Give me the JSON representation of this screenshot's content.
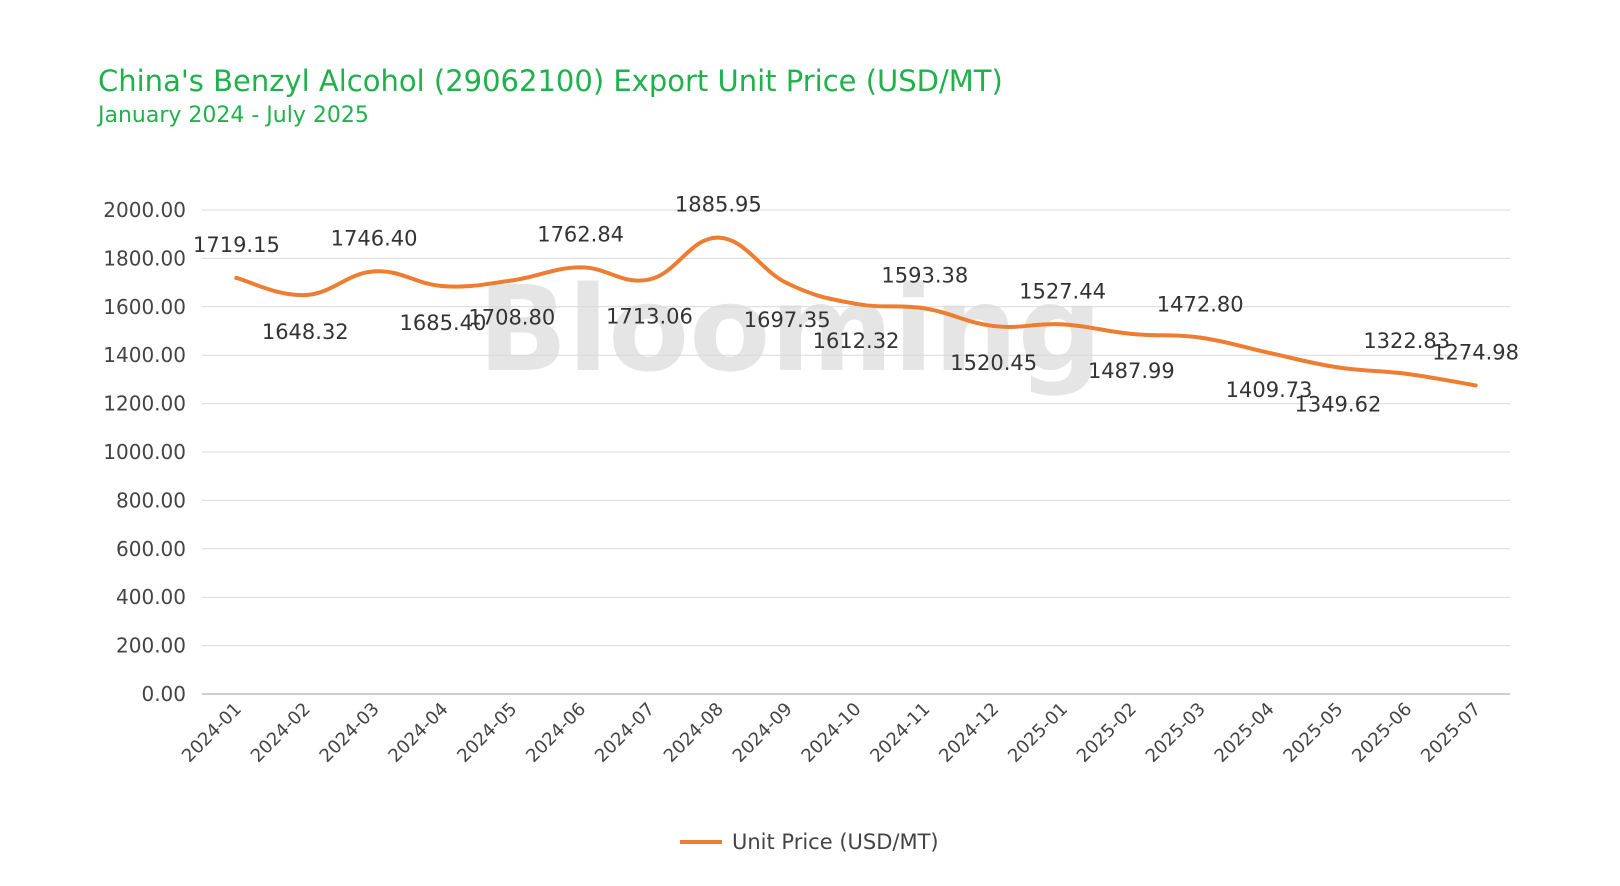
{
  "chart_data": {
    "type": "line",
    "title": "China's Benzyl Alcohol (29062100) Export Unit Price (USD/MT)",
    "subtitle": "January 2024 - July 2025",
    "watermark": "Blooming",
    "categories": [
      "2024-01",
      "2024-02",
      "2024-03",
      "2024-04",
      "2024-05",
      "2024-06",
      "2024-07",
      "2024-08",
      "2024-09",
      "2024-10",
      "2024-11",
      "2024-12",
      "2025-01",
      "2025-02",
      "2025-03",
      "2025-04",
      "2025-05",
      "2025-06",
      "2025-07"
    ],
    "series": [
      {
        "name": "Unit Price (USD/MT)",
        "color": "#ed7d31",
        "values": [
          1719.15,
          1648.32,
          1746.4,
          1685.4,
          1708.8,
          1762.84,
          1713.06,
          1885.95,
          1697.35,
          1612.32,
          1593.38,
          1520.45,
          1527.44,
          1487.99,
          1472.8,
          1409.73,
          1349.62,
          1322.83,
          1274.98
        ],
        "labels": [
          "1719.15",
          "1648.32",
          "1746.40",
          "1685.40",
          "1708.80",
          "1762.84",
          "1713.06",
          "1885.95",
          "1697.35",
          "1612.32",
          "1593.38",
          "1520.45",
          "1527.44",
          "1487.99",
          "1472.80",
          "1409.73",
          "1349.62",
          "1322.83",
          "1274.98"
        ]
      }
    ],
    "ylim": [
      0,
      2000
    ],
    "yticks": [
      "0.00",
      "200.00",
      "400.00",
      "600.00",
      "800.00",
      "1000.00",
      "1200.00",
      "1400.00",
      "1600.00",
      "1800.00",
      "2000.00"
    ],
    "grid": true,
    "legend_position": "bottom-center",
    "colors": {
      "title": "#1fb14a",
      "line": "#ed7d31",
      "grid": "#d9d9d9"
    }
  }
}
